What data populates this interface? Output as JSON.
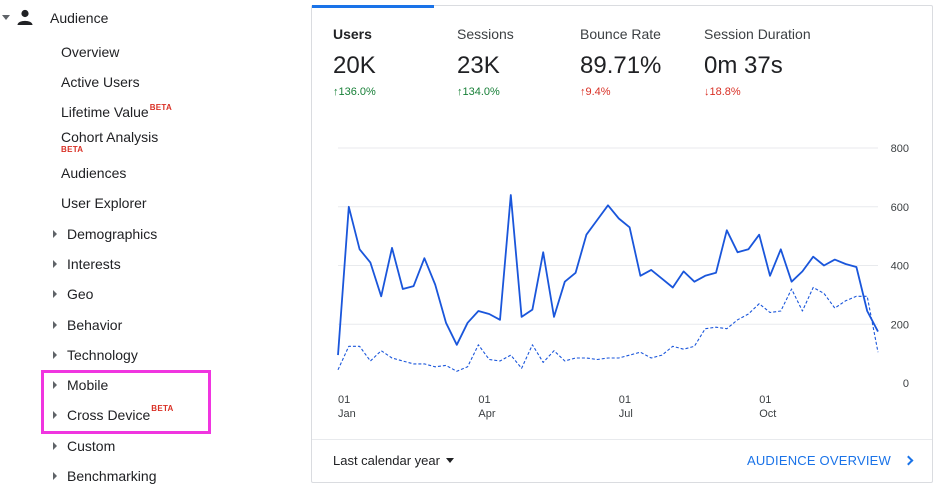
{
  "sidebar": {
    "section_label": "Audience",
    "items": [
      {
        "label": "Overview"
      },
      {
        "label": "Active Users"
      },
      {
        "label": "Lifetime Value",
        "badge": "BETA"
      },
      {
        "label": "Cohort Analysis",
        "badge": "BETA"
      },
      {
        "label": "Audiences"
      },
      {
        "label": "User Explorer"
      }
    ],
    "expandable": [
      {
        "label": "Demographics"
      },
      {
        "label": "Interests"
      },
      {
        "label": "Geo"
      },
      {
        "label": "Behavior"
      },
      {
        "label": "Technology"
      },
      {
        "label": "Mobile"
      },
      {
        "label": "Cross Device",
        "badge": "BETA"
      },
      {
        "label": "Custom"
      },
      {
        "label": "Benchmarking"
      }
    ]
  },
  "metrics": [
    {
      "title": "Users",
      "value": "20K",
      "change": "↑136.0%",
      "change_color": "#188038"
    },
    {
      "title": "Sessions",
      "value": "23K",
      "change": "↑134.0%",
      "change_color": "#188038"
    },
    {
      "title": "Bounce Rate",
      "value": "89.71%",
      "change": "↑9.4%",
      "change_color": "#d93025"
    },
    {
      "title": "Session Duration",
      "value": "0m 37s",
      "change": "↓18.8%",
      "change_color": "#d93025"
    }
  ],
  "chart_data": {
    "type": "line",
    "x_ticks": [
      {
        "day": "01",
        "month": "Jan",
        "week": 0
      },
      {
        "day": "01",
        "month": "Apr",
        "week": 13
      },
      {
        "day": "01",
        "month": "Jul",
        "week": 26
      },
      {
        "day": "01",
        "month": "Oct",
        "week": 39
      }
    ],
    "y_ticks": [
      "800",
      "600",
      "400",
      "200",
      "0"
    ],
    "ylim": [
      0,
      800
    ],
    "series": [
      {
        "style": "solid",
        "color": "#1a56db",
        "values": [
          95,
          600,
          455,
          410,
          295,
          460,
          320,
          330,
          425,
          335,
          205,
          130,
          205,
          245,
          235,
          215,
          640,
          225,
          250,
          445,
          225,
          345,
          375,
          505,
          555,
          605,
          560,
          530,
          365,
          385,
          355,
          325,
          380,
          345,
          365,
          375,
          520,
          445,
          455,
          505,
          365,
          455,
          345,
          380,
          430,
          400,
          420,
          405,
          395,
          245,
          175
        ]
      },
      {
        "style": "dashed",
        "color": "#1a56db",
        "values": [
          45,
          125,
          125,
          75,
          110,
          85,
          75,
          65,
          65,
          55,
          60,
          40,
          55,
          130,
          80,
          75,
          95,
          50,
          130,
          70,
          110,
          75,
          85,
          85,
          80,
          85,
          85,
          95,
          105,
          85,
          95,
          125,
          115,
          125,
          185,
          190,
          185,
          215,
          235,
          270,
          240,
          245,
          320,
          245,
          325,
          305,
          255,
          280,
          295,
          295,
          105
        ]
      }
    ]
  },
  "footer": {
    "date_range": "Last calendar year",
    "link_label": "AUDIENCE OVERVIEW"
  }
}
